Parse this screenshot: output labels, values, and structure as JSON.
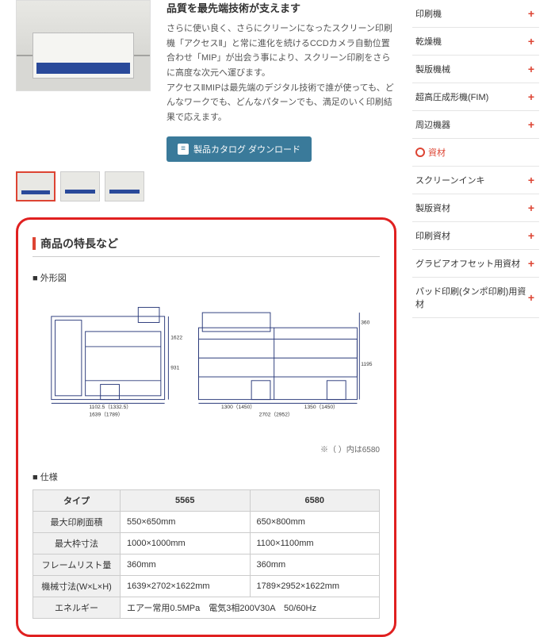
{
  "product": {
    "title": "品質を最先端技術が支えます",
    "description": "さらに使い良く、さらにクリーンになったスクリーン印刷機「アクセスⅡ」と常に進化を続けるCCDカメラ自動位置合わせ「MIP」が出会う事により、スクリーン印刷をさらに高度な次元へ運びます。\nアクセスⅡMIPは最先端のデジタル技術で誰が使っても、どんなワークでも、どんなパターンでも、満足のいく印刷結果で応えます。",
    "download_label": "製品カタログ ダウンロード"
  },
  "feature": {
    "heading": "商品の特長など",
    "diagram_label": "■ 外形図",
    "diagram_note": "※（ ）内は6580",
    "spec_label": "■ 仕様",
    "dims": {
      "front_w1": "1102.5（1332.5）",
      "front_w2": "1639（1789）",
      "front_h1": "931",
      "front_h2": "1622",
      "side_w1": "1300（1450）",
      "side_w2": "1350（1450）",
      "side_w3": "2702（2952）",
      "side_h1": "1195",
      "side_h2": "360"
    }
  },
  "spec": {
    "headers": [
      "タイプ",
      "5565",
      "6580"
    ],
    "rows": [
      {
        "label": "最大印刷面積",
        "c1": "550×650mm",
        "c2": "650×800mm"
      },
      {
        "label": "最大枠寸法",
        "c1": "1000×1000mm",
        "c2": "1100×1100mm"
      },
      {
        "label": "フレームリスト量",
        "c1": "360mm",
        "c2": "360mm"
      },
      {
        "label": "機械寸法(W×L×H)",
        "c1": "1639×2702×1622mm",
        "c2": "1789×2952×1622mm"
      },
      {
        "label": "エネルギー",
        "c1": "エアー常用0.5MPa　電気3相200V30A　50/60Hz",
        "c2": ""
      }
    ]
  },
  "sidebar": {
    "items": [
      {
        "label": "印刷機",
        "plus": true
      },
      {
        "label": "乾燥機",
        "plus": true
      },
      {
        "label": "製版機械",
        "plus": true
      },
      {
        "label": "超高圧成形機(FIM)",
        "plus": true
      },
      {
        "label": "周辺機器",
        "plus": true
      },
      {
        "label": "資材",
        "active": true
      },
      {
        "label": "スクリーンインキ",
        "plus": true
      },
      {
        "label": "製版資材",
        "plus": true
      },
      {
        "label": "印刷資材",
        "plus": true
      },
      {
        "label": "グラビアオフセット用資材",
        "plus": true
      },
      {
        "label": "パッド印刷(タンポ印刷)用資材",
        "plus": true
      }
    ]
  }
}
